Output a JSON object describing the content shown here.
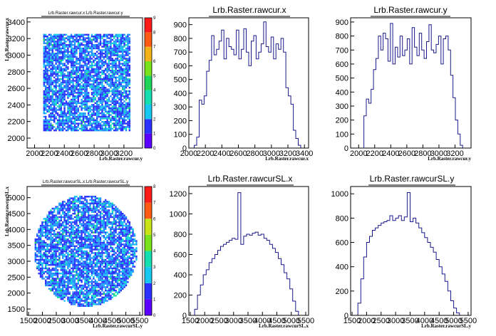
{
  "chart_data": [
    {
      "type": "heatmap",
      "title": "Lrb.Raster.rawcur.x:Lrb.Raster.rawcur.y",
      "xlabel": "Lrb.Raster.rawcur.y",
      "ylabel": "Lrb.Raster.rawcur.x",
      "xlim": [
        1900,
        3450
      ],
      "ylim": [
        1880,
        3450
      ],
      "x_ticks": [
        2000,
        2200,
        2400,
        2600,
        2800,
        3000,
        3200
      ],
      "y_ticks": [
        2000,
        2200,
        2400,
        2600,
        2800,
        3000,
        3200,
        3400
      ],
      "fill_region": {
        "shape": "rectangle",
        "x_range": [
          2100,
          3270
        ],
        "y_range": [
          2100,
          3260
        ]
      },
      "z_range": [
        0,
        9
      ],
      "z_ticks": [
        0,
        1,
        2,
        3,
        4,
        5,
        6,
        7,
        8,
        9
      ]
    },
    {
      "type": "bar",
      "title": "Lrb.Raster.rawcur.x",
      "xlabel": "Lrb.Raster.rawcur.x",
      "xlim": [
        2000,
        3450
      ],
      "ylim": [
        0,
        950
      ],
      "x_ticks": [
        2000,
        2200,
        2400,
        2600,
        2800,
        3000,
        3200,
        3400
      ],
      "y_ticks": [
        0,
        100,
        200,
        300,
        400,
        500,
        600,
        700,
        800,
        900
      ],
      "bins": [
        2080,
        2110,
        2140,
        2170,
        2200,
        2230,
        2260,
        2290,
        2320,
        2350,
        2380,
        2410,
        2440,
        2470,
        2500,
        2530,
        2560,
        2590,
        2620,
        2650,
        2680,
        2710,
        2740,
        2770,
        2800,
        2830,
        2860,
        2890,
        2920,
        2950,
        2980,
        3010,
        3040,
        3070,
        3100,
        3130,
        3160,
        3190,
        3220,
        3250,
        3280,
        3310,
        3340
      ],
      "values": [
        20,
        80,
        350,
        320,
        380,
        560,
        640,
        820,
        680,
        720,
        780,
        860,
        650,
        800,
        740,
        720,
        680,
        860,
        650,
        720,
        870,
        700,
        600,
        780,
        820,
        650,
        700,
        760,
        920,
        740,
        700,
        810,
        650,
        760,
        720,
        800,
        700,
        440,
        380,
        320,
        130,
        70,
        20
      ]
    },
    {
      "type": "bar",
      "title": "Lrb.Raster.rawcur.y",
      "xlabel": "Lrb.Raster.rawcur.y",
      "xlim": [
        1900,
        3400
      ],
      "ylim": [
        0,
        930
      ],
      "x_ticks": [
        2000,
        2200,
        2400,
        2600,
        2800,
        3000,
        3200
      ],
      "y_ticks": [
        0,
        100,
        200,
        300,
        400,
        500,
        600,
        700,
        800,
        900
      ],
      "bins": [
        2080,
        2110,
        2140,
        2170,
        2200,
        2230,
        2260,
        2290,
        2320,
        2350,
        2380,
        2410,
        2440,
        2470,
        2500,
        2530,
        2560,
        2590,
        2620,
        2650,
        2680,
        2710,
        2740,
        2770,
        2800,
        2830,
        2860,
        2890,
        2920,
        2950,
        2980,
        3010,
        3040,
        3070,
        3100,
        3130,
        3160,
        3190,
        3220,
        3250,
        3280
      ],
      "values": [
        230,
        350,
        320,
        420,
        560,
        640,
        800,
        700,
        820,
        780,
        620,
        890,
        600,
        720,
        650,
        800,
        660,
        700,
        780,
        600,
        860,
        720,
        660,
        820,
        700,
        640,
        760,
        880,
        700,
        680,
        740,
        800,
        600,
        780,
        800,
        700,
        520,
        360,
        200,
        100,
        20
      ]
    },
    {
      "type": "heatmap",
      "title": "Lrb.Raster.rawcurSL.x:Lrb.Raster.rawcurSL.y",
      "xlabel": "Lrb.Raster.rawcurSL.y",
      "ylabel": "Lrb.Raster.rawcurSL.x",
      "xlim": [
        1450,
        5600
      ],
      "ylim": [
        1300,
        5350
      ],
      "x_ticks": [
        1500,
        2000,
        2500,
        3000,
        3500,
        4000,
        4500,
        5000,
        5500
      ],
      "y_ticks": [
        1500,
        2000,
        2500,
        3000,
        3500,
        4000,
        4500,
        5000
      ],
      "fill_region": {
        "shape": "circle",
        "center": [
          3530,
          3350
        ],
        "radius_x": 1850,
        "radius_y": 1750
      },
      "z_range": [
        0,
        8
      ],
      "z_ticks": [
        0,
        1,
        2,
        3,
        4,
        5,
        6,
        7,
        8
      ]
    },
    {
      "type": "bar",
      "title": "Lrb.Raster.rawcurSL.x",
      "xlabel": "Lrb.Raster.rawcurSL.x",
      "xlim": [
        1450,
        5600
      ],
      "ylim": [
        0,
        1270
      ],
      "x_ticks": [
        1500,
        2000,
        2500,
        3000,
        3500,
        4000,
        4500,
        5000,
        5500
      ],
      "y_ticks": [
        0,
        200,
        400,
        600,
        800,
        1000,
        1200
      ],
      "bins": [
        1700,
        1800,
        1900,
        2000,
        2100,
        2200,
        2300,
        2400,
        2500,
        2600,
        2700,
        2800,
        2900,
        3000,
        3100,
        3200,
        3300,
        3400,
        3500,
        3600,
        3700,
        3800,
        3900,
        4000,
        4100,
        4200,
        4300,
        4400,
        4500,
        4600,
        4700,
        4800,
        4900,
        5000,
        5100,
        5200
      ],
      "values": [
        60,
        200,
        300,
        400,
        450,
        520,
        560,
        600,
        640,
        680,
        700,
        720,
        740,
        760,
        750,
        1210,
        700,
        780,
        800,
        790,
        810,
        820,
        790,
        800,
        760,
        740,
        700,
        660,
        620,
        560,
        500,
        420,
        360,
        260,
        140,
        40
      ]
    },
    {
      "type": "bar",
      "title": "Lrb.Raster.rawcurSL.y",
      "xlabel": "Lrb.Raster.rawcurSL.y",
      "xlim": [
        1450,
        5600
      ],
      "ylim": [
        0,
        1060
      ],
      "x_ticks": [
        1500,
        2000,
        2500,
        3000,
        3500,
        4000,
        4500,
        5000,
        5500
      ],
      "y_ticks": [
        0,
        200,
        400,
        600,
        800,
        1000
      ],
      "bins": [
        1750,
        1850,
        1950,
        2050,
        2150,
        2250,
        2350,
        2450,
        2550,
        2650,
        2750,
        2850,
        2950,
        3050,
        3150,
        3250,
        3350,
        3450,
        3550,
        3650,
        3750,
        3850,
        3950,
        4050,
        4150,
        4250,
        4350,
        4450,
        4550,
        4650,
        4750,
        4850,
        4950,
        5050,
        5150
      ],
      "values": [
        100,
        300,
        480,
        600,
        650,
        700,
        720,
        740,
        760,
        770,
        780,
        820,
        780,
        800,
        820,
        780,
        810,
        1010,
        770,
        800,
        760,
        720,
        680,
        640,
        600,
        560,
        520,
        460,
        400,
        340,
        280,
        200,
        120,
        60,
        20
      ]
    }
  ]
}
